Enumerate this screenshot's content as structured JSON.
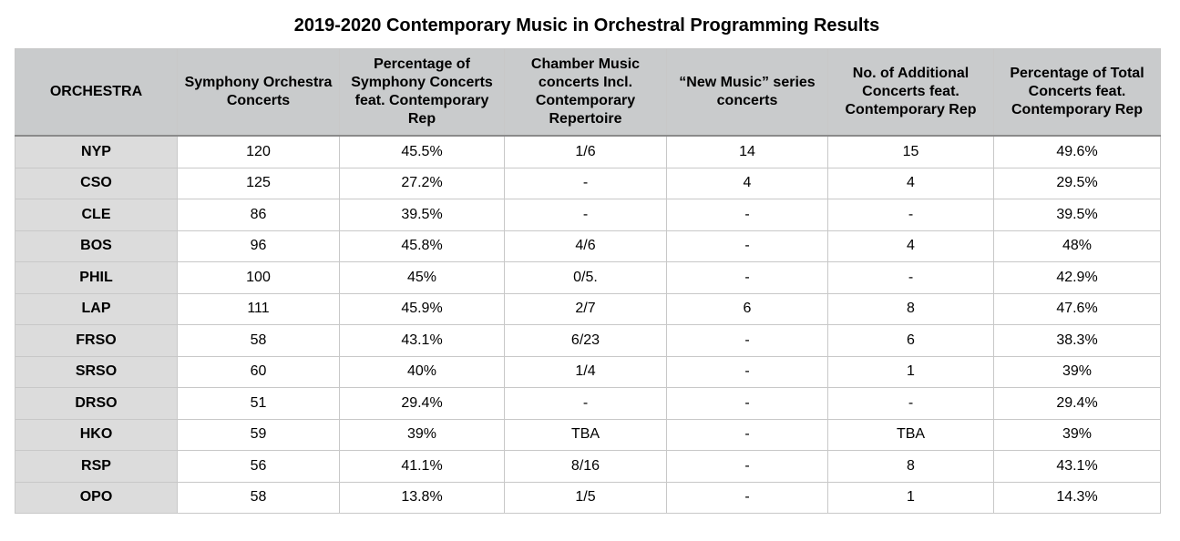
{
  "title": "2019-2020 Contemporary Music in Orchestral Programming Results",
  "chart_data": {
    "type": "table",
    "title": "2019-2020 Contemporary Music in Orchestral Programming Results",
    "columns": [
      "ORCHESTRA",
      "Symphony Orchestra Concerts",
      "Percentage of Symphony Concerts feat. Contemporary Rep",
      "Chamber Music concerts Incl. Contemporary Repertoire",
      "“New Music” series concerts",
      "No. of Additional Concerts feat. Contemporary Rep",
      "Percentage of Total Concerts feat. Contemporary Rep"
    ],
    "rows": [
      [
        "NYP",
        "120",
        "45.5%",
        "1/6",
        "14",
        "15",
        "49.6%"
      ],
      [
        "CSO",
        "125",
        "27.2%",
        "-",
        "4",
        "4",
        "29.5%"
      ],
      [
        "CLE",
        "86",
        "39.5%",
        "-",
        "-",
        "-",
        "39.5%"
      ],
      [
        "BOS",
        "96",
        "45.8%",
        "4/6",
        "-",
        "4",
        "48%"
      ],
      [
        "PHIL",
        "100",
        "45%",
        "0/5.",
        "-",
        "-",
        "42.9%"
      ],
      [
        "LAP",
        "111",
        "45.9%",
        "2/7",
        "6",
        "8",
        "47.6%"
      ],
      [
        "FRSO",
        "58",
        "43.1%",
        "6/23",
        "-",
        "6",
        "38.3%"
      ],
      [
        "SRSO",
        "60",
        "40%",
        "1/4",
        "-",
        "1",
        "39%"
      ],
      [
        "DRSO",
        "51",
        "29.4%",
        "-",
        "-",
        "-",
        "29.4%"
      ],
      [
        "HKO",
        "59",
        "39%",
        "TBA",
        "-",
        "TBA",
        "39%"
      ],
      [
        "RSP",
        "56",
        "41.1%",
        "8/16",
        "-",
        "8",
        "43.1%"
      ],
      [
        "OPO",
        "58",
        "13.8%",
        "1/5",
        "-",
        "1",
        "14.3%"
      ]
    ]
  },
  "colors": {
    "header_bg": "#c9cbcc",
    "first_column_bg": "#dcdcdc",
    "grid": "#c8c8c8"
  }
}
